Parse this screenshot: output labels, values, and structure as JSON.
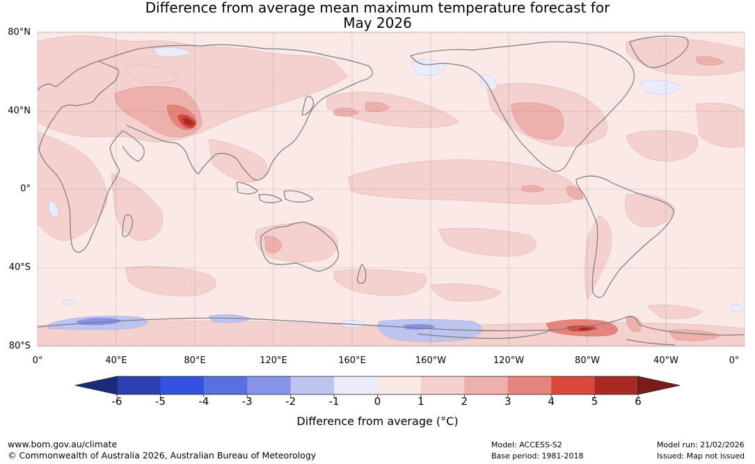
{
  "title": {
    "line1": "Difference from average mean maximum temperature forecast for",
    "line2": "May 2026"
  },
  "map": {
    "latitude_labels": [
      "80°N",
      "40°N",
      "0°",
      "40°S",
      "80°S"
    ],
    "longitude_labels": [
      "0°",
      "40°E",
      "80°E",
      "120°E",
      "160°E",
      "160°W",
      "120°W",
      "80°W",
      "40°W",
      "0°"
    ],
    "ocean_color": "#fbe9e8",
    "land_outline_color": "#7a7a7a",
    "anomaly_regions": [
      {
        "name": "Central Asia warm anomaly",
        "level": "2-3",
        "color": "#edb0ad"
      },
      {
        "name": "Tibetan plateau hot spot",
        "level": "3-5",
        "color": "#c0483f"
      },
      {
        "name": "North American warm anomaly",
        "level": "2-3",
        "color": "#edb0ad"
      },
      {
        "name": "Antarctic Peninsula warm anomaly",
        "level": "3-4",
        "color": "#d9544c"
      },
      {
        "name": "Antarctic cool anomaly (Indian Ocean sector)",
        "level": "-1 to -3",
        "color": "#8b96e8"
      },
      {
        "name": "Antarctic cool anomaly (Pacific sector)",
        "level": "-1 to -2",
        "color": "#c3c8f1"
      }
    ]
  },
  "colorbar": {
    "ticks": [
      "-6",
      "-5",
      "-4",
      "-3",
      "-2",
      "-1",
      "0",
      "1",
      "2",
      "3",
      "4",
      "5",
      "6"
    ],
    "colors": [
      "#1b2a7b",
      "#2c3fb0",
      "#3350e0",
      "#5b70e0",
      "#8694e8",
      "#bdc4f0",
      "#eaecfa",
      "#fbe9e8",
      "#f4d0ce",
      "#edb0ad",
      "#e5847d",
      "#d9473d",
      "#a82a24",
      "#7a1c18"
    ],
    "label": "Difference from average (°C)"
  },
  "footer": {
    "website": "www.bom.gov.au/climate",
    "copyright": "© Commonwealth of Australia 2026, Australian Bureau of Meteorology",
    "model": "Model: ACCESS-S2",
    "base_period": "Base period: 1981-2018",
    "model_run": "Model run: 21/02/2026",
    "issued": "Issued: Map not issued"
  }
}
